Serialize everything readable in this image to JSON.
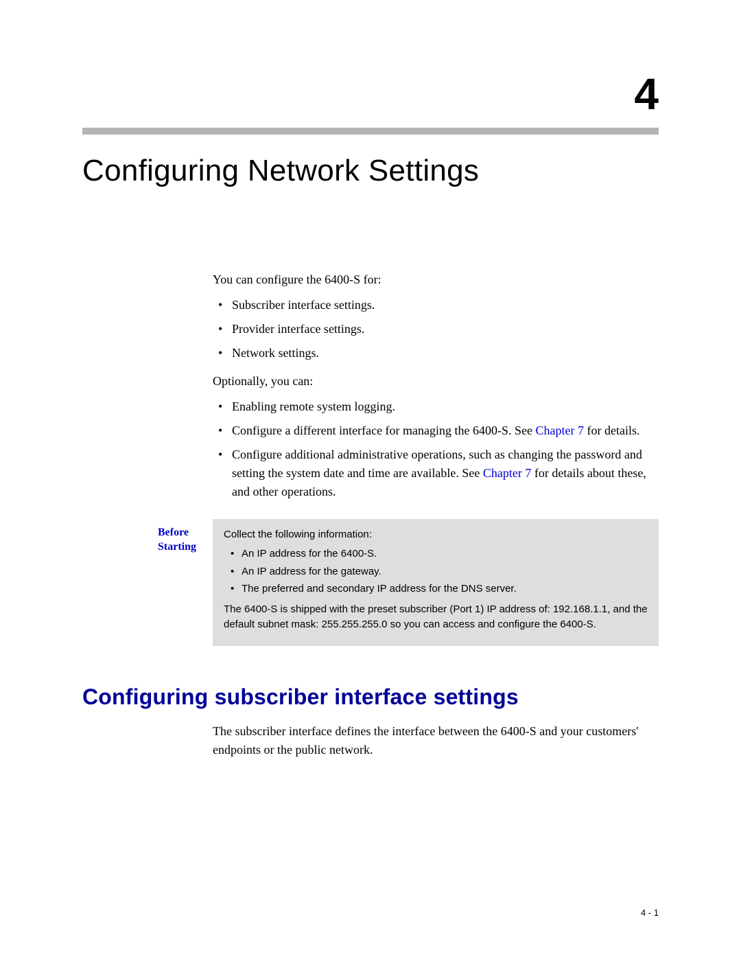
{
  "chapter": {
    "number": "4",
    "title": "Configuring Network Settings"
  },
  "intro": {
    "line1": "You can configure the 6400-S for:",
    "list1": {
      "i0": "Subscriber interface settings.",
      "i1": "Provider interface settings.",
      "i2": "Network settings."
    },
    "line2": "Optionally, you can:",
    "list2": {
      "i0": "Enabling remote system logging.",
      "i1a": "Configure a different interface for managing the 6400-S. See ",
      "i1link": "Chapter 7",
      "i1b": " for details.",
      "i2a": "Configure additional administrative operations, such as changing the password and setting the system date and time are available. See ",
      "i2link": "Chapter 7",
      "i2b": " for details about these, and other operations."
    }
  },
  "before": {
    "label1": "Before",
    "label2": "Starting",
    "intro": "Collect the following information:",
    "items": {
      "i0": "An IP address for the 6400-S.",
      "i1": "An IP address for the gateway.",
      "i2": "The preferred and secondary IP address for the DNS server."
    },
    "note": "The 6400-S is shipped with the preset subscriber (Port 1) IP address of: 192.168.1.1, and the default subnet mask: 255.255.255.0 so you can access and configure the 6400-S."
  },
  "section": {
    "heading": "Configuring subscriber interface settings",
    "para": "The subscriber interface defines the interface between the 6400-S and your customers' endpoints or the public network."
  },
  "footer": {
    "pagenum": "4 - 1"
  },
  "colors": {
    "rule": "#b4b4b4",
    "box_bg": "#dedede",
    "heading_blue": "#000099",
    "link_blue": "#0000d8"
  }
}
